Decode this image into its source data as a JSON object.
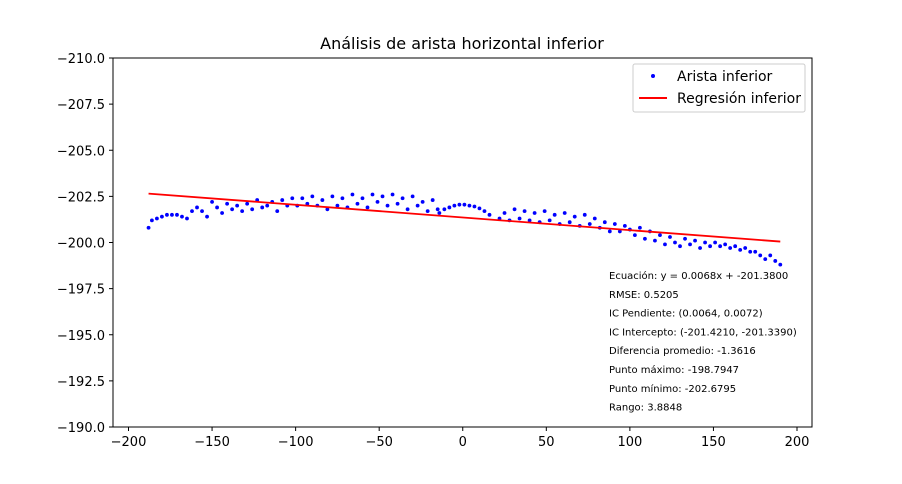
{
  "chart_data": {
    "type": "scatter",
    "title": "Análisis de arista horizontal inferior",
    "xlabel": "",
    "ylabel": "",
    "xlim": [
      -210,
      210
    ],
    "ylim": [
      -210.0,
      -190.0
    ],
    "y_inverted": true,
    "x_ticks": [
      -200,
      -150,
      -100,
      -50,
      0,
      50,
      100,
      150,
      200
    ],
    "x_tick_labels": [
      "−200",
      "−150",
      "−100",
      "−50",
      "0",
      "50",
      "100",
      "150",
      "200"
    ],
    "y_ticks": [
      -210.0,
      -207.5,
      -205.0,
      -202.5,
      -200.0,
      -197.5,
      -195.0,
      -192.5,
      -190.0
    ],
    "y_tick_labels": [
      "−210.0",
      "−207.5",
      "−205.0",
      "−202.5",
      "−200.0",
      "−197.5",
      "−195.0",
      "−192.5",
      "−190.0"
    ],
    "grid": false,
    "legend_position": "top-right",
    "series": [
      {
        "name": "Arista inferior",
        "kind": "scatter",
        "color": "#0000ff",
        "points": [
          [
            -188,
            -200.8
          ],
          [
            -186,
            -201.2
          ],
          [
            -183,
            -201.3
          ],
          [
            -180,
            -201.4
          ],
          [
            -177,
            -201.5
          ],
          [
            -174,
            -201.5
          ],
          [
            -171,
            -201.5
          ],
          [
            -168,
            -201.4
          ],
          [
            -165,
            -201.3
          ],
          [
            -162,
            -201.7
          ],
          [
            -159,
            -201.9
          ],
          [
            -156,
            -201.7
          ],
          [
            -153,
            -201.4
          ],
          [
            -150,
            -202.2
          ],
          [
            -147,
            -201.9
          ],
          [
            -144,
            -201.6
          ],
          [
            -141,
            -202.1
          ],
          [
            -138,
            -201.8
          ],
          [
            -135,
            -202.0
          ],
          [
            -132,
            -201.7
          ],
          [
            -129,
            -202.1
          ],
          [
            -126,
            -201.8
          ],
          [
            -123,
            -202.3
          ],
          [
            -120,
            -201.9
          ],
          [
            -117,
            -202.0
          ],
          [
            -114,
            -202.2
          ],
          [
            -111,
            -201.7
          ],
          [
            -108,
            -202.3
          ],
          [
            -105,
            -202.0
          ],
          [
            -102,
            -202.4
          ],
          [
            -99,
            -202.0
          ],
          [
            -96,
            -202.4
          ],
          [
            -93,
            -202.1
          ],
          [
            -90,
            -202.5
          ],
          [
            -87,
            -202.0
          ],
          [
            -84,
            -202.3
          ],
          [
            -81,
            -201.8
          ],
          [
            -78,
            -202.5
          ],
          [
            -75,
            -202.0
          ],
          [
            -72,
            -202.4
          ],
          [
            -69,
            -201.9
          ],
          [
            -66,
            -202.6
          ],
          [
            -63,
            -202.1
          ],
          [
            -60,
            -202.4
          ],
          [
            -57,
            -201.9
          ],
          [
            -54,
            -202.6
          ],
          [
            -51,
            -202.2
          ],
          [
            -48,
            -202.5
          ],
          [
            -45,
            -202.0
          ],
          [
            -42,
            -202.6
          ],
          [
            -39,
            -202.1
          ],
          [
            -36,
            -202.4
          ],
          [
            -33,
            -201.8
          ],
          [
            -30,
            -202.5
          ],
          [
            -27,
            -202.0
          ],
          [
            -24,
            -202.2
          ],
          [
            -21,
            -201.7
          ],
          [
            -18,
            -202.3
          ],
          [
            -15,
            -201.8
          ],
          [
            -14,
            -201.6
          ],
          [
            -11,
            -201.8
          ],
          [
            -8,
            -201.9
          ],
          [
            -5,
            -202.0
          ],
          [
            -2,
            -202.05
          ],
          [
            1,
            -202.05
          ],
          [
            4,
            -202.0
          ],
          [
            7,
            -201.95
          ],
          [
            10,
            -201.85
          ],
          [
            13,
            -201.7
          ],
          [
            16,
            -201.5
          ],
          [
            22,
            -201.3
          ],
          [
            25,
            -201.6
          ],
          [
            28,
            -201.2
          ],
          [
            31,
            -201.8
          ],
          [
            34,
            -201.3
          ],
          [
            37,
            -201.7
          ],
          [
            40,
            -201.2
          ],
          [
            43,
            -201.6
          ],
          [
            46,
            -201.1
          ],
          [
            49,
            -201.7
          ],
          [
            52,
            -201.2
          ],
          [
            55,
            -201.5
          ],
          [
            58,
            -201.0
          ],
          [
            61,
            -201.6
          ],
          [
            64,
            -201.1
          ],
          [
            67,
            -201.4
          ],
          [
            70,
            -200.9
          ],
          [
            73,
            -201.5
          ],
          [
            76,
            -201.0
          ],
          [
            79,
            -201.3
          ],
          [
            82,
            -200.8
          ],
          [
            85,
            -201.1
          ],
          [
            88,
            -200.6
          ],
          [
            91,
            -201.0
          ],
          [
            94,
            -200.6
          ],
          [
            97,
            -200.9
          ],
          [
            100,
            -200.7
          ],
          [
            103,
            -200.4
          ],
          [
            106,
            -200.8
          ],
          [
            109,
            -200.2
          ],
          [
            112,
            -200.6
          ],
          [
            115,
            -200.1
          ],
          [
            118,
            -200.4
          ],
          [
            121,
            -199.9
          ],
          [
            124,
            -200.3
          ],
          [
            127,
            -200.0
          ],
          [
            130,
            -199.8
          ],
          [
            133,
            -200.2
          ],
          [
            136,
            -199.9
          ],
          [
            139,
            -200.1
          ],
          [
            142,
            -199.7
          ],
          [
            145,
            -200.0
          ],
          [
            148,
            -199.8
          ],
          [
            151,
            -200.0
          ],
          [
            154,
            -199.8
          ],
          [
            157,
            -199.9
          ],
          [
            160,
            -199.7
          ],
          [
            163,
            -199.8
          ],
          [
            166,
            -199.6
          ],
          [
            169,
            -199.7
          ],
          [
            172,
            -199.5
          ],
          [
            175,
            -199.5
          ],
          [
            178,
            -199.3
          ],
          [
            181,
            -199.1
          ],
          [
            184,
            -199.3
          ],
          [
            187,
            -199.0
          ],
          [
            190,
            -198.8
          ]
        ]
      },
      {
        "name": "Regresión inferior",
        "kind": "line",
        "color": "#ff0000",
        "x": [
          -188,
          190
        ],
        "y": [
          -202.65,
          -200.05
        ]
      }
    ],
    "annotations": [
      "Ecuación: y = 0.0068x + -201.3800",
      "RMSE: 0.5205",
      "IC Pendiente: (0.0064, 0.0072)",
      "IC Intercepto: (-201.4210, -201.3390)",
      "Diferencia promedio: -1.3616",
      "Punto máximo: -198.7947",
      "Punto mínimo: -202.6795",
      "Rango: 3.8848"
    ]
  }
}
